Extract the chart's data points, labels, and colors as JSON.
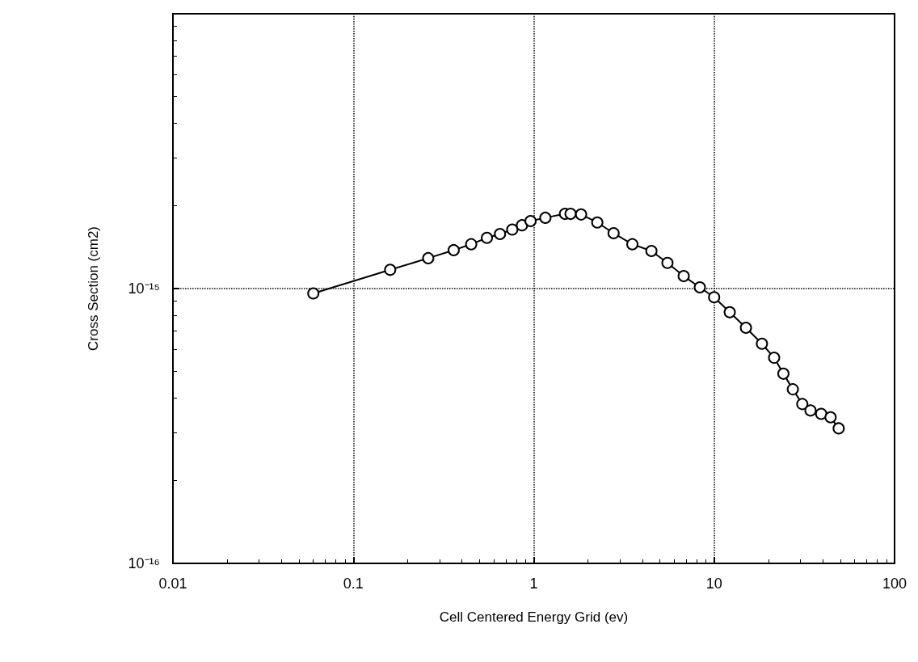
{
  "chart_data": {
    "type": "line",
    "xlabel": "Cell Centered Energy Grid (ev)",
    "ylabel": "Cross Section (cm2)",
    "log": "xy",
    "grid": true,
    "marker": "circle",
    "line_style": "solid",
    "xlim": [
      0.01,
      100
    ],
    "xticks": [
      0.01,
      0.1,
      1,
      10,
      100
    ],
    "ylim": [
      1e-16,
      1e-14
    ],
    "yticks": [
      {
        "value": 1e-16,
        "label": "10⁻¹⁶"
      },
      {
        "value": 1e-15,
        "label": "10⁻¹⁵"
      },
      {
        "value": 1e-14,
        "label": null
      }
    ],
    "series": [
      {
        "color": "#000000",
        "x": [
          0.06,
          0.16,
          0.26,
          0.36,
          0.45,
          0.55,
          0.65,
          0.76,
          0.86,
          0.96,
          1.16,
          1.49,
          1.6,
          1.83,
          2.25,
          2.77,
          3.52,
          4.49,
          5.51,
          6.78,
          8.33,
          10,
          12.2,
          15,
          18.4,
          21.5,
          24.2,
          27.3,
          30.8,
          34.2,
          39.2,
          44.2,
          49
        ],
        "values": [
          9.6e-16,
          1.17e-15,
          1.29e-15,
          1.38e-15,
          1.45e-15,
          1.53e-15,
          1.58e-15,
          1.64e-15,
          1.7e-15,
          1.76e-15,
          1.81e-15,
          1.87e-15,
          1.87e-15,
          1.86e-15,
          1.74e-15,
          1.59e-15,
          1.45e-15,
          1.37e-15,
          1.24e-15,
          1.11e-15,
          1.01e-15,
          9.3e-16,
          8.2e-16,
          7.2e-16,
          6.3e-16,
          5.6e-16,
          4.9e-16,
          4.3e-16,
          3.8e-16,
          3.6e-16,
          3.5e-16,
          3.4e-16,
          3.1e-16
        ]
      }
    ]
  }
}
